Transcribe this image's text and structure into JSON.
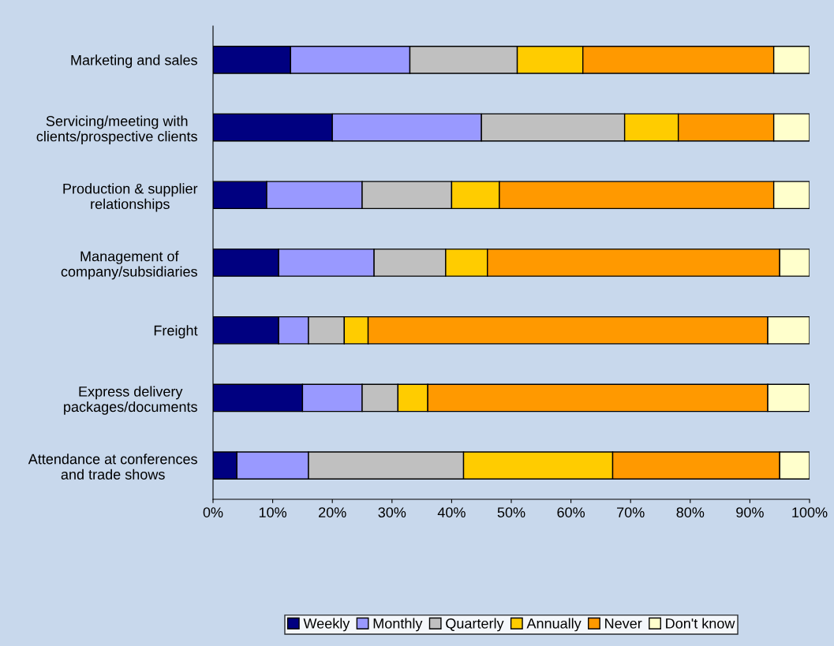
{
  "chart_data": {
    "type": "bar",
    "orientation": "horizontal",
    "stacked": true,
    "categories": [
      "Marketing and sales",
      "Servicing/meeting with\nclients/prospective clients",
      "Production & supplier\nrelationships",
      "Management of\ncompany/subsidiaries",
      "Freight",
      "Express delivery\npackages/documents",
      "Attendance at conferences\nand trade shows"
    ],
    "series": [
      {
        "name": "Weekly",
        "color": "#000080",
        "values": [
          13,
          20,
          9,
          11,
          11,
          15,
          4
        ]
      },
      {
        "name": "Monthly",
        "color": "#9999ff",
        "values": [
          20,
          25,
          16,
          16,
          5,
          10,
          12
        ]
      },
      {
        "name": "Quarterly",
        "color": "#c0c0c0",
        "values": [
          18,
          24,
          15,
          12,
          6,
          6,
          26
        ]
      },
      {
        "name": "Annually",
        "color": "#ffcc00",
        "values": [
          11,
          9,
          8,
          7,
          4,
          5,
          25
        ]
      },
      {
        "name": "Never",
        "color": "#ff9900",
        "values": [
          32,
          16,
          46,
          49,
          67,
          57,
          28
        ]
      },
      {
        "name": "Don't know",
        "color": "#ffffcc",
        "values": [
          6,
          6,
          6,
          5,
          7,
          7,
          5
        ]
      }
    ],
    "xlim": [
      0,
      100
    ],
    "xticks": [
      {
        "value": 0,
        "label": "0%"
      },
      {
        "value": 10,
        "label": "10%"
      },
      {
        "value": 20,
        "label": "20%"
      },
      {
        "value": 30,
        "label": "30%"
      },
      {
        "value": 40,
        "label": "40%"
      },
      {
        "value": 50,
        "label": "50%"
      },
      {
        "value": 60,
        "label": "60%"
      },
      {
        "value": 70,
        "label": "70%"
      },
      {
        "value": 80,
        "label": "80%"
      },
      {
        "value": 90,
        "label": "90%"
      },
      {
        "value": 100,
        "label": "100%"
      }
    ],
    "grid": false,
    "legend": "bottom"
  }
}
